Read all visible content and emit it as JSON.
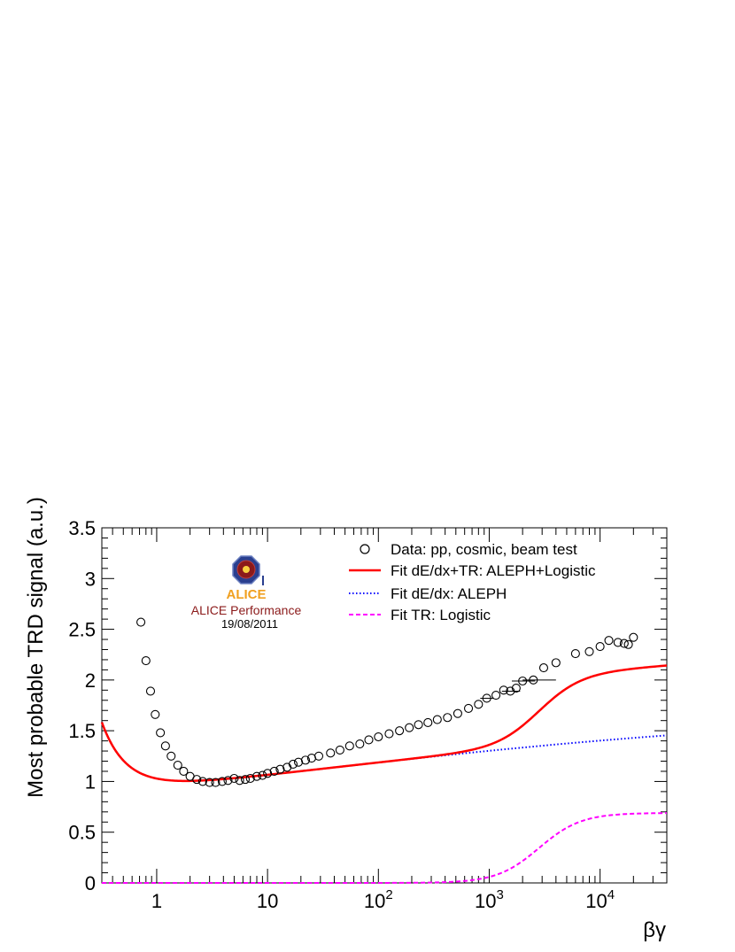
{
  "chart_data": {
    "type": "scatter",
    "xlabel": "βγ",
    "ylabel": "Most probable TRD signal (a.u.)",
    "x_scale": "log",
    "xlim": [
      0.32,
      40000
    ],
    "ylim": [
      0,
      3.5
    ],
    "x_ticks": [
      {
        "value": 1,
        "base": "1",
        "exp": ""
      },
      {
        "value": 10,
        "base": "10",
        "exp": ""
      },
      {
        "value": 100,
        "base": "10",
        "exp": "2"
      },
      {
        "value": 1000,
        "base": "10",
        "exp": "3"
      },
      {
        "value": 10000,
        "base": "10",
        "exp": "4"
      }
    ],
    "y_ticks": [
      {
        "value": 0,
        "label": "0"
      },
      {
        "value": 0.5,
        "label": "0.5"
      },
      {
        "value": 1,
        "label": "1"
      },
      {
        "value": 1.5,
        "label": "1.5"
      },
      {
        "value": 2,
        "label": "2"
      },
      {
        "value": 2.5,
        "label": "2.5"
      },
      {
        "value": 3,
        "label": "3"
      },
      {
        "value": 3.5,
        "label": "3.5"
      }
    ],
    "legend": {
      "position": "top-right",
      "entries": [
        {
          "label": "Data: pp, cosmic, beam test",
          "style": "open-circle",
          "color": "#000000"
        },
        {
          "label": "Fit dE/dx+TR: ALEPH+Logistic",
          "style": "solid",
          "color": "#ff0000"
        },
        {
          "label": "Fit dE/dx: ALEPH",
          "style": "dotted",
          "color": "#0000ff"
        },
        {
          "label": "Fit TR: Logistic",
          "style": "dashed",
          "color": "#ff00ff"
        }
      ]
    },
    "annotations": {
      "logo_text": "ALICE",
      "performance": "ALICE Performance",
      "date": "19/08/2011"
    },
    "data_points": [
      {
        "x": 0.72,
        "y": 2.57
      },
      {
        "x": 0.8,
        "y": 2.19
      },
      {
        "x": 0.88,
        "y": 1.89
      },
      {
        "x": 0.97,
        "y": 1.66
      },
      {
        "x": 1.08,
        "y": 1.48
      },
      {
        "x": 1.2,
        "y": 1.35
      },
      {
        "x": 1.35,
        "y": 1.25
      },
      {
        "x": 1.55,
        "y": 1.16
      },
      {
        "x": 1.75,
        "y": 1.1
      },
      {
        "x": 2.0,
        "y": 1.05
      },
      {
        "x": 2.3,
        "y": 1.02
      },
      {
        "x": 2.6,
        "y": 1.0
      },
      {
        "x": 3.0,
        "y": 0.99
      },
      {
        "x": 3.4,
        "y": 0.99
      },
      {
        "x": 3.9,
        "y": 1.0
      },
      {
        "x": 4.4,
        "y": 1.01
      },
      {
        "x": 5.0,
        "y": 1.03
      },
      {
        "x": 5.6,
        "y": 1.01
      },
      {
        "x": 6.3,
        "y": 1.02
      },
      {
        "x": 7.0,
        "y": 1.03
      },
      {
        "x": 8.0,
        "y": 1.05
      },
      {
        "x": 9.0,
        "y": 1.06
      },
      {
        "x": 10.0,
        "y": 1.08
      },
      {
        "x": 11.5,
        "y": 1.1
      },
      {
        "x": 13.0,
        "y": 1.12
      },
      {
        "x": 15.0,
        "y": 1.14
      },
      {
        "x": 17.0,
        "y": 1.17
      },
      {
        "x": 19.0,
        "y": 1.19
      },
      {
        "x": 22.0,
        "y": 1.21
      },
      {
        "x": 25.0,
        "y": 1.23
      },
      {
        "x": 29.0,
        "y": 1.25
      },
      {
        "x": 37.0,
        "y": 1.28
      },
      {
        "x": 45.0,
        "y": 1.31
      },
      {
        "x": 55.0,
        "y": 1.35
      },
      {
        "x": 68.0,
        "y": 1.37
      },
      {
        "x": 82.0,
        "y": 1.41
      },
      {
        "x": 100.0,
        "y": 1.44
      },
      {
        "x": 125.0,
        "y": 1.47
      },
      {
        "x": 155.0,
        "y": 1.5
      },
      {
        "x": 190.0,
        "y": 1.53
      },
      {
        "x": 230.0,
        "y": 1.56
      },
      {
        "x": 280.0,
        "y": 1.58
      },
      {
        "x": 340.0,
        "y": 1.61
      },
      {
        "x": 420.0,
        "y": 1.63
      },
      {
        "x": 520.0,
        "y": 1.67
      },
      {
        "x": 650.0,
        "y": 1.72
      },
      {
        "x": 800.0,
        "y": 1.76
      },
      {
        "x": 950.0,
        "y": 1.82,
        "xerr": [
          120,
          150
        ]
      },
      {
        "x": 1150.0,
        "y": 1.85
      },
      {
        "x": 1350.0,
        "y": 1.9
      },
      {
        "x": 1550.0,
        "y": 1.89,
        "xerr": [
          250,
          350
        ]
      },
      {
        "x": 1750.0,
        "y": 1.92
      },
      {
        "x": 2000.0,
        "y": 1.99,
        "xerr": [
          400,
          600
        ]
      },
      {
        "x": 2500.0,
        "y": 2.0,
        "xerr": [
          500,
          1500
        ]
      },
      {
        "x": 3100.0,
        "y": 2.12
      },
      {
        "x": 4000.0,
        "y": 2.17
      },
      {
        "x": 6000.0,
        "y": 2.26
      },
      {
        "x": 8000.0,
        "y": 2.28
      },
      {
        "x": 10000.0,
        "y": 2.33
      },
      {
        "x": 12000.0,
        "y": 2.39
      },
      {
        "x": 14500.0,
        "y": 2.37
      },
      {
        "x": 16500.0,
        "y": 2.36
      },
      {
        "x": 18000.0,
        "y": 2.35
      },
      {
        "x": 20000.0,
        "y": 2.42
      }
    ]
  }
}
